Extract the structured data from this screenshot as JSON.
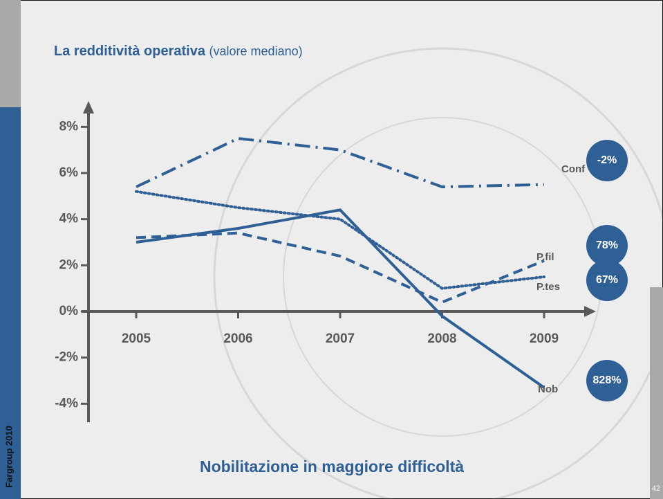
{
  "chart_data": {
    "type": "line",
    "title": "La redditività operativa",
    "subtitle": "(valore mediano)",
    "categories": [
      "2005",
      "2006",
      "2007",
      "2008",
      "2009"
    ],
    "series": [
      {
        "name": "Conf",
        "color": "#2e5f95",
        "style": "dashdot",
        "values": [
          5.4,
          7.5,
          7.0,
          5.4,
          5.5
        ],
        "change_label": "-2%"
      },
      {
        "name": "P.fil",
        "color": "#2e5f95",
        "style": "dashed",
        "values": [
          3.2,
          3.4,
          2.4,
          0.4,
          2.2
        ],
        "change_label": "78%"
      },
      {
        "name": "P.tes",
        "color": "#2e5f95",
        "style": "dotted",
        "values": [
          5.2,
          4.5,
          4.0,
          1.0,
          1.5
        ],
        "change_label": "67%"
      },
      {
        "name": "Nob",
        "color": "#2e5f95",
        "style": "solid",
        "values": [
          3.0,
          3.6,
          4.4,
          -0.2,
          -3.3
        ],
        "change_label": "828%"
      }
    ],
    "ylim": [
      -4.8,
      9
    ],
    "yticks": [
      {
        "value": -4,
        "label": "-4%"
      },
      {
        "value": -2,
        "label": "-2%"
      },
      {
        "value": 0,
        "label": "0%"
      },
      {
        "value": 2,
        "label": "2%"
      },
      {
        "value": 4,
        "label": "4%"
      },
      {
        "value": 6,
        "label": "6%"
      },
      {
        "value": 8,
        "label": "8%"
      }
    ],
    "footer": "Nobilitazione in maggiore difficoltà",
    "side_label": "Fargroup 2010",
    "page_number": "42"
  }
}
